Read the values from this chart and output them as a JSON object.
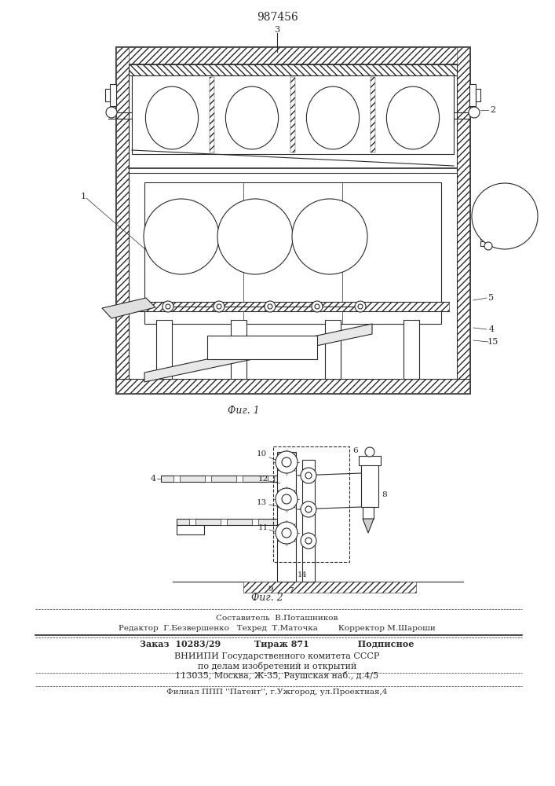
{
  "patent_number": "987456",
  "fig1_label": "Фиг. 1",
  "fig2_label": "Фиг. 2",
  "line_color": "#2a2a2a",
  "footer_lines": [
    "Составитель  В.Поташников",
    "Редактор  Г.Безвершенко   Техред  Т.Маточка        Корректор М.Шароши",
    "Заказ  10283/29           Тираж 871                Подписное",
    "ВНИИПИ Государственного комитета СССР",
    "по делам изобретений и открытий",
    "113035, Москва, Ж-35, Раушская наб., д.4/5",
    "Филиал ППП ''Патент'', г.Ужгород, ул.Проектная,4"
  ]
}
